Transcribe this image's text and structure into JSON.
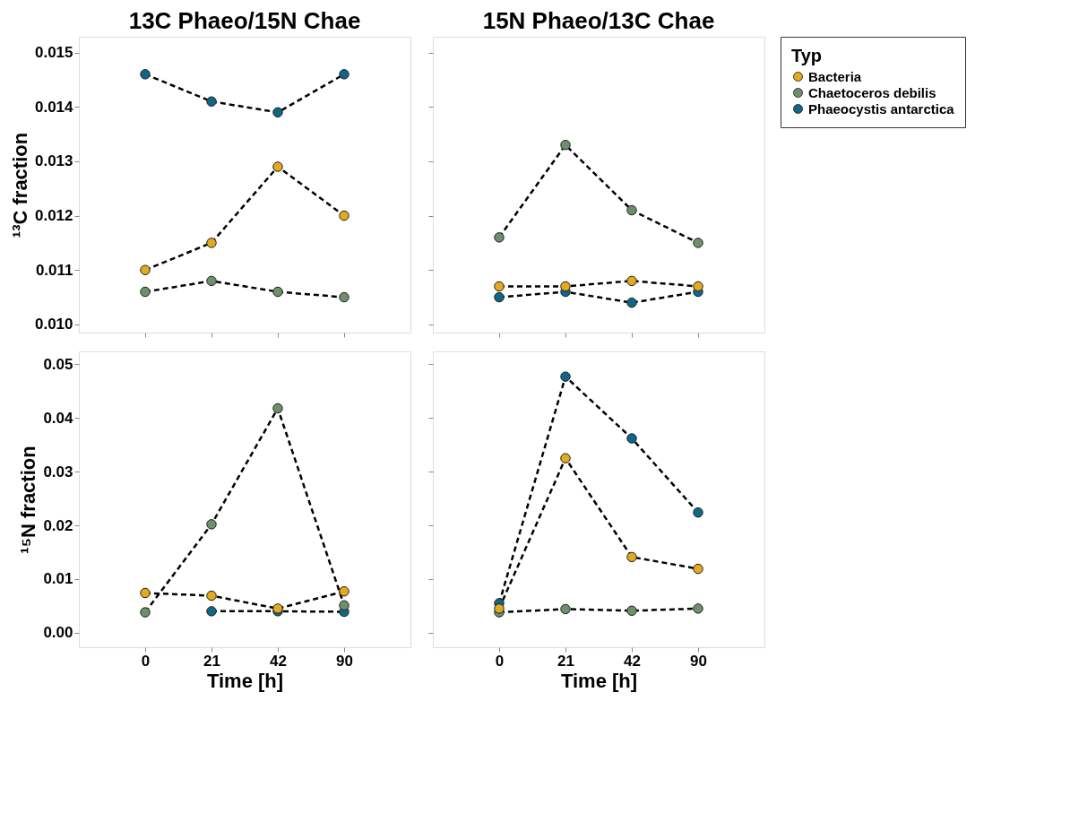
{
  "chart_data": [
    {
      "type": "line",
      "title": "13C Phaeo/15N Chae",
      "ylabel": "¹³C fraction",
      "categories": [
        "0",
        "21",
        "42",
        "90"
      ],
      "ylim": [
        0.00985,
        0.01529
      ],
      "yticks": [
        {
          "value": 0.01,
          "label": "0.010"
        },
        {
          "value": 0.011,
          "label": "0.011"
        },
        {
          "value": 0.012,
          "label": "0.012"
        },
        {
          "value": 0.013,
          "label": "0.013"
        },
        {
          "value": 0.014,
          "label": "0.014"
        },
        {
          "value": 0.015,
          "label": "0.015"
        }
      ],
      "tick_labels": "y",
      "marker": "circle",
      "line_style": "dashed",
      "grid": false,
      "series": [
        {
          "color": "#e3a91f",
          "values": [
            0.011,
            0.0115,
            0.0129,
            0.012
          ]
        },
        {
          "color": "#6e8f6c",
          "values": [
            0.0106,
            0.0108,
            0.0106,
            0.0105
          ]
        },
        {
          "color": "#0f6687",
          "values": [
            0.0146,
            0.0141,
            0.0139,
            0.0146
          ]
        }
      ]
    },
    {
      "type": "line",
      "title": "15N Phaeo/13C Chae",
      "categories": [
        "0",
        "21",
        "42",
        "90"
      ],
      "ylim": [
        0.00985,
        0.01529
      ],
      "yticks": [
        {
          "value": 0.01,
          "label": null
        },
        {
          "value": 0.011,
          "label": null
        },
        {
          "value": 0.012,
          "label": null
        },
        {
          "value": 0.013,
          "label": null
        },
        {
          "value": 0.014,
          "label": null
        },
        {
          "value": 0.015,
          "label": null
        }
      ],
      "tick_labels": false,
      "marker": "circle",
      "line_style": "dashed",
      "grid": false,
      "legend": "right",
      "legend_title": "Typ",
      "series": [
        {
          "name": "Bacteria",
          "color": "#e3a91f",
          "values": [
            0.0107,
            0.0107,
            0.0108,
            0.0107
          ]
        },
        {
          "name": "Chaetoceros debilis",
          "color": "#6e8f6c",
          "values": [
            0.0116,
            0.0133,
            0.0121,
            0.0115
          ]
        },
        {
          "name": "Phaeocystis antarctica",
          "color": "#0f6687",
          "values": [
            0.0105,
            0.0106,
            0.0104,
            0.0106
          ]
        }
      ]
    },
    {
      "type": "line",
      "xlabel": "Time [h]",
      "ylabel": "¹⁵N fraction",
      "categories": [
        "0",
        "21",
        "42",
        "90"
      ],
      "ylim": [
        -0.0027,
        0.0524
      ],
      "yticks": [
        {
          "value": 0.0,
          "label": "0.00"
        },
        {
          "value": 0.01,
          "label": "0.01"
        },
        {
          "value": 0.02,
          "label": "0.02"
        },
        {
          "value": 0.03,
          "label": "0.03"
        },
        {
          "value": 0.04,
          "label": "0.04"
        },
        {
          "value": 0.05,
          "label": "0.05"
        }
      ],
      "marker": "circle",
      "line_style": "dashed",
      "grid": false,
      "series": [
        {
          "color": "#e3a91f",
          "values": [
            0.0074,
            0.0069,
            0.0045,
            0.0077
          ]
        },
        {
          "color": "#6e8f6c",
          "values": [
            0.0038,
            0.0202,
            0.0418,
            0.0051
          ]
        },
        {
          "color": "#0f6687",
          "values": [
            null,
            0.004,
            0.004,
            0.0039
          ]
        }
      ]
    },
    {
      "type": "line",
      "xlabel": "Time [h]",
      "categories": [
        "0",
        "21",
        "42",
        "90"
      ],
      "ylim": [
        -0.0027,
        0.0524
      ],
      "yticks": [
        {
          "value": 0.0,
          "label": null
        },
        {
          "value": 0.01,
          "label": null
        },
        {
          "value": 0.02,
          "label": null
        },
        {
          "value": 0.03,
          "label": null
        },
        {
          "value": 0.04,
          "label": null
        },
        {
          "value": 0.05,
          "label": null
        }
      ],
      "tick_labels": "x",
      "marker": "circle",
      "line_style": "dashed",
      "grid": false,
      "series": [
        {
          "color": "#e3a91f",
          "values": [
            0.0045,
            0.0325,
            0.0141,
            0.0119
          ]
        },
        {
          "color": "#6e8f6c",
          "values": [
            0.0038,
            0.0044,
            0.0041,
            0.0045
          ]
        },
        {
          "color": "#0f6687",
          "values": [
            0.0055,
            0.0477,
            0.0362,
            0.0224
          ]
        }
      ]
    }
  ]
}
